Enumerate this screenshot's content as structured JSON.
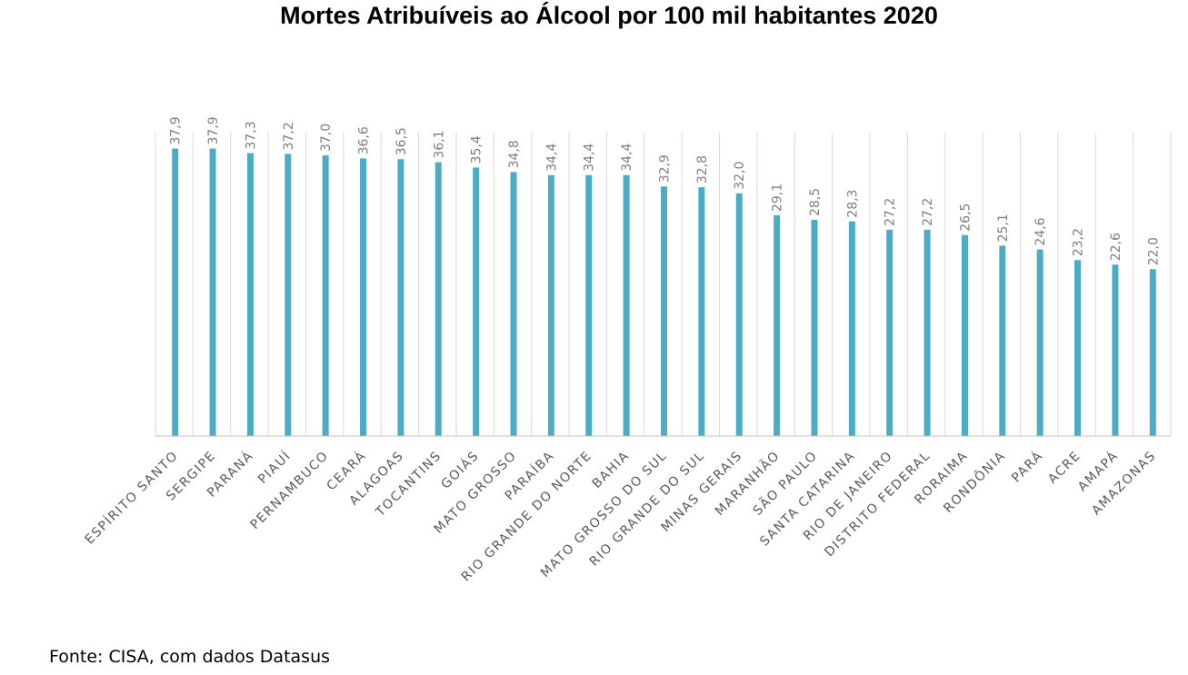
{
  "chart_data": {
    "type": "bar",
    "title": "Mortes Atribuíveis ao Álcool por 100 mil habitantes 2020",
    "categories": [
      "ESPÍRITO SANTO",
      "SERGIPE",
      "PARANÁ",
      "PIAUÍ",
      "PERNAMBUCO",
      "CEARÁ",
      "ALAGOAS",
      "TOCANTINS",
      "GOIÁS",
      "MATO GROSSO",
      "PARAÍBA",
      "RIO GRANDE DO NORTE",
      "BAHIA",
      "MATO GROSSO DO SUL",
      "RIO GRANDE DO SUL",
      "MINAS GERAIS",
      "MARANHÃO",
      "SÃO PAULO",
      "SANTA CATARINA",
      "RIO DE JANEIRO",
      "DISTRITO FEDERAL",
      "RORAIMA",
      "RONDÔNIA",
      "PARÁ",
      "ACRE",
      "AMAPÁ",
      "AMAZONAS"
    ],
    "values": [
      37.9,
      37.9,
      37.3,
      37.2,
      37.0,
      36.6,
      36.5,
      36.1,
      35.4,
      34.8,
      34.4,
      34.4,
      34.4,
      32.9,
      32.8,
      32.0,
      29.1,
      28.5,
      28.3,
      27.2,
      27.2,
      26.5,
      25.1,
      24.6,
      23.2,
      22.6,
      22.0
    ],
    "value_labels": [
      "37,9",
      "37,9",
      "37,3",
      "37,2",
      "37,0",
      "36,6",
      "36,5",
      "36,1",
      "35,4",
      "34,8",
      "34,4",
      "34,4",
      "34,4",
      "32,9",
      "32,8",
      "32,0",
      "29,1",
      "28,5",
      "28,3",
      "27,2",
      "27,2",
      "26,5",
      "25,1",
      "24,6",
      "23,2",
      "22,6",
      "22,0"
    ],
    "xlabel": "",
    "ylabel": "",
    "ylim": [
      0,
      40
    ],
    "grid": "vertical",
    "legend": "none",
    "bar_color": "#4bacc6",
    "note": "Fonte: CISA, com dados Datasus"
  }
}
